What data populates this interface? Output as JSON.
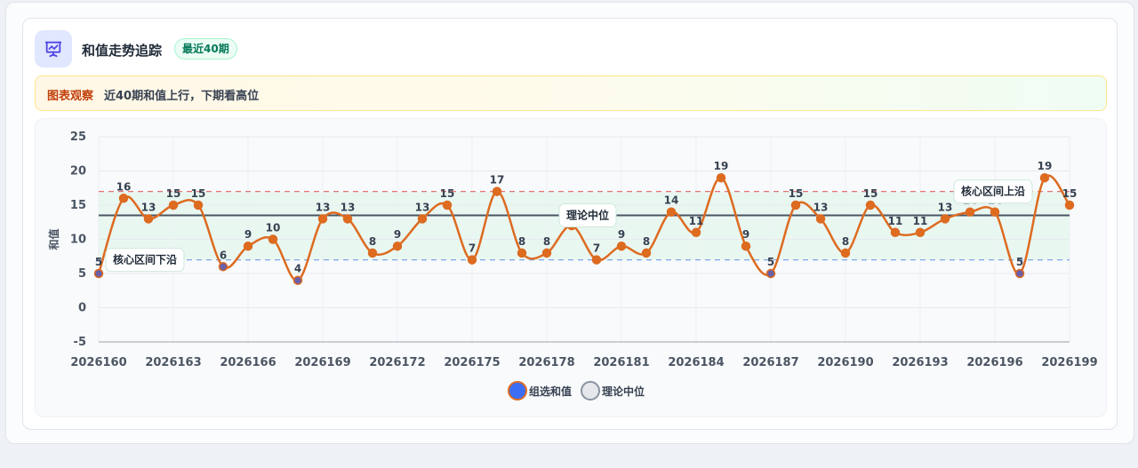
{
  "header": {
    "title": "和值走势追踪",
    "badge": "最近40期",
    "icon": "chart-presentation-icon"
  },
  "notice": {
    "label": "图表观察",
    "text": "近40期和值上行，下期看高位"
  },
  "colors": {
    "line": "#dd6b20",
    "band_fill": "#e6f6ee",
    "upper_line": "#e57373",
    "lower_line": "#7fa6e6",
    "median_line": "#4b5563",
    "point_fill": "#dd6b20",
    "low_point_fill": "#6b5fa8",
    "legend_series": "#3b6ef5",
    "legend_median": "#e5e7eb"
  },
  "chart_data": {
    "type": "line",
    "smooth": true,
    "ylabel": "和值",
    "xlabel": "",
    "ylim": [
      -5,
      25
    ],
    "yticks": [
      -5,
      0,
      5,
      10,
      15,
      20,
      25
    ],
    "grid": true,
    "x": [
      "2026160",
      "2026161",
      "2026162",
      "2026163",
      "2026164",
      "2026165",
      "2026166",
      "2026167",
      "2026168",
      "2026169",
      "2026170",
      "2026171",
      "2026172",
      "2026173",
      "2026174",
      "2026175",
      "2026176",
      "2026177",
      "2026178",
      "2026179",
      "2026180",
      "2026181",
      "2026182",
      "2026183",
      "2026184",
      "2026185",
      "2026186",
      "2026187",
      "2026188",
      "2026189",
      "2026190",
      "2026191",
      "2026192",
      "2026193",
      "2026194",
      "2026195",
      "2026196",
      "2026197",
      "2026198",
      "2026199"
    ],
    "xtick_labels": [
      "2026160",
      "2026163",
      "2026166",
      "2026169",
      "2026172",
      "2026175",
      "2026178",
      "2026181",
      "2026184",
      "2026187",
      "2026190",
      "2026193",
      "2026196",
      "2026199"
    ],
    "series": [
      {
        "name": "组选和值",
        "values": [
          5,
          16,
          13,
          15,
          15,
          6,
          9,
          10,
          4,
          13,
          13,
          8,
          9,
          13,
          15,
          7,
          17,
          8,
          8,
          12,
          7,
          9,
          8,
          14,
          11,
          19,
          9,
          5,
          15,
          13,
          8,
          15,
          11,
          11,
          13,
          14,
          14,
          5,
          19,
          15
        ]
      }
    ],
    "reference_lines": [
      {
        "name": "理论中位",
        "value": 13.5,
        "style": "solid"
      },
      {
        "name": "核心区间上沿",
        "value": 17,
        "style": "dashed"
      },
      {
        "name": "核心区间下沿",
        "value": 7,
        "style": "dashed"
      }
    ],
    "band": [
      7,
      17
    ],
    "annotations": [
      {
        "text": "核心区间下沿",
        "x": "2026160"
      },
      {
        "text": "理论中位",
        "x": "2026179"
      },
      {
        "text": "核心区间上沿",
        "x": "2026197"
      }
    ],
    "legend": {
      "position": "bottom-center",
      "items": [
        {
          "label": "组选和值"
        },
        {
          "label": "理论中位"
        }
      ]
    }
  }
}
